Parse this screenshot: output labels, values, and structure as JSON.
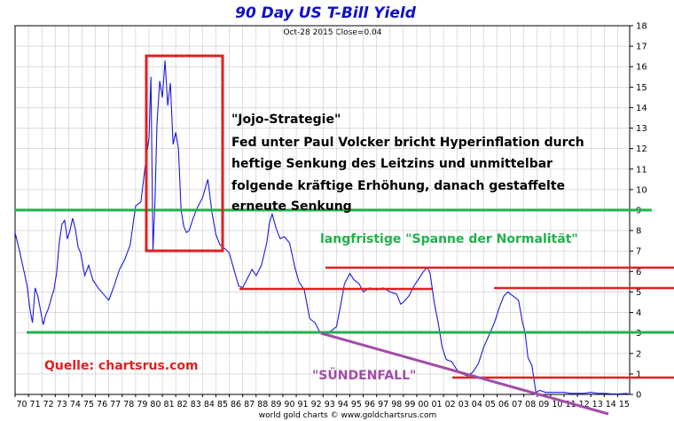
{
  "colors": {
    "series": "#1a1ae0",
    "grid": "#c8c8c8",
    "green": "#22b14c",
    "red": "#e02020",
    "purple": "#a24ca8",
    "title": "#1010c8"
  },
  "chart_data": {
    "type": "line",
    "title": "90 Day US T-Bill Yield",
    "subtitle": "Oct-28 2015  Close=0.04",
    "footer": "world gold charts © www.goldchartsrus.com",
    "xlim": [
      1970,
      2015.9
    ],
    "ylim": [
      0,
      18
    ],
    "y_ticks": [
      0,
      1,
      2,
      3,
      4,
      5,
      6,
      7,
      8,
      9,
      10,
      11,
      12,
      13,
      14,
      15,
      16,
      17,
      18
    ],
    "x_ticks": [
      "70",
      "71",
      "72",
      "73",
      "74",
      "75",
      "76",
      "77",
      "78",
      "79",
      "80",
      "81",
      "82",
      "83",
      "84",
      "85",
      "86",
      "87",
      "88",
      "89",
      "90",
      "91",
      "92",
      "93",
      "94",
      "95",
      "96",
      "97",
      "98",
      "99",
      "00",
      "01",
      "02",
      "03",
      "04",
      "05",
      "06",
      "07",
      "08",
      "09",
      "10",
      "11",
      "12",
      "13",
      "14",
      "15"
    ],
    "grid": true,
    "series": [
      {
        "x": [
          1970.0,
          1970.3,
          1970.6,
          1970.9,
          1971.1,
          1971.3,
          1971.5,
          1971.7,
          1971.9,
          1972.1,
          1972.3,
          1972.5,
          1972.7,
          1972.9,
          1973.1,
          1973.3,
          1973.5,
          1973.7,
          1973.9,
          1974.1,
          1974.3,
          1974.5,
          1974.7,
          1974.9,
          1975.2,
          1975.5,
          1975.8,
          1976.2,
          1976.6,
          1977.0,
          1977.4,
          1977.8,
          1978.2,
          1978.6,
          1979.0,
          1979.4,
          1979.8,
          1980.0,
          1980.15,
          1980.3,
          1980.45,
          1980.6,
          1980.8,
          1981.0,
          1981.2,
          1981.4,
          1981.6,
          1981.8,
          1982.0,
          1982.2,
          1982.4,
          1982.6,
          1982.8,
          1983.0,
          1983.3,
          1983.6,
          1984.0,
          1984.4,
          1984.7,
          1985.0,
          1985.3,
          1985.7,
          1986.0,
          1986.3,
          1986.7,
          1987.0,
          1987.3,
          1987.7,
          1988.0,
          1988.4,
          1988.8,
          1989.0,
          1989.2,
          1989.5,
          1989.8,
          1990.1,
          1990.5,
          1990.9,
          1991.2,
          1991.6,
          1992.0,
          1992.4,
          1992.8,
          1993.2,
          1993.6,
          1994.0,
          1994.3,
          1994.6,
          1995.0,
          1995.3,
          1995.7,
          1996.0,
          1996.5,
          1997.0,
          1997.5,
          1998.0,
          1998.5,
          1998.8,
          1999.0,
          1999.4,
          1999.8,
          2000.2,
          2000.5,
          2000.8,
          2001.0,
          2001.3,
          2001.6,
          2001.9,
          2002.2,
          2002.6,
          2003.0,
          2003.4,
          2003.8,
          2004.2,
          2004.6,
          2005.0,
          2005.4,
          2005.8,
          2006.2,
          2006.5,
          2006.8,
          2007.2,
          2007.6,
          2007.9,
          2008.1,
          2008.3,
          2008.6,
          2008.9,
          2009.2,
          2009.6,
          2010.0,
          2010.5,
          2011.0,
          2011.5,
          2012.0,
          2012.5,
          2013.0,
          2013.5,
          2014.0,
          2014.5,
          2015.0,
          2015.5,
          2015.8
        ],
        "values": [
          7.9,
          7.1,
          6.2,
          5.3,
          4.2,
          3.5,
          5.2,
          4.8,
          4.1,
          3.4,
          3.9,
          4.2,
          4.7,
          5.1,
          5.9,
          7.4,
          8.3,
          8.5,
          7.6,
          8.0,
          8.6,
          8.1,
          7.2,
          6.9,
          5.8,
          6.3,
          5.6,
          5.2,
          4.9,
          4.6,
          5.3,
          6.1,
          6.6,
          7.3,
          9.2,
          9.4,
          11.6,
          12.5,
          15.5,
          7.0,
          9.5,
          13.2,
          15.3,
          14.5,
          16.3,
          14.1,
          15.2,
          12.2,
          12.8,
          12.0,
          9.0,
          8.2,
          7.9,
          8.0,
          8.6,
          9.1,
          9.6,
          10.5,
          8.9,
          7.8,
          7.3,
          7.1,
          6.9,
          6.2,
          5.3,
          5.2,
          5.6,
          6.1,
          5.8,
          6.3,
          7.4,
          8.4,
          8.8,
          8.1,
          7.6,
          7.7,
          7.4,
          6.2,
          5.5,
          5.1,
          3.7,
          3.5,
          3.0,
          3.0,
          3.1,
          3.3,
          4.3,
          5.4,
          5.9,
          5.6,
          5.4,
          5.0,
          5.2,
          5.1,
          5.2,
          5.0,
          4.9,
          4.4,
          4.5,
          4.8,
          5.3,
          5.7,
          6.0,
          6.2,
          5.9,
          4.5,
          3.5,
          2.3,
          1.7,
          1.6,
          1.2,
          1.0,
          0.9,
          1.1,
          1.5,
          2.3,
          2.9,
          3.5,
          4.3,
          4.8,
          5.0,
          4.8,
          4.6,
          3.5,
          3.0,
          1.8,
          1.4,
          0.1,
          0.2,
          0.1,
          0.1,
          0.1,
          0.1,
          0.05,
          0.05,
          0.05,
          0.1,
          0.05,
          0.05,
          0.03,
          0.02,
          0.04,
          0.04
        ]
      }
    ],
    "annotations": [
      {
        "id": "jojo-title",
        "text": "\"Jojo-Strategie\""
      },
      {
        "id": "jojo-l1",
        "text": "Fed unter Paul Volcker bricht Hyperinflation durch"
      },
      {
        "id": "jojo-l2",
        "text": "heftige Senkung des Leitzins und unmittelbar"
      },
      {
        "id": "jojo-l3",
        "text": "folgende kräftige Erhöhung, danach gestaffelte"
      },
      {
        "id": "jojo-l4",
        "text": "erneute Senkung"
      },
      {
        "id": "normal",
        "text": "langfristige \"Spanne der Normalität\""
      },
      {
        "id": "source",
        "text": "Quelle: chartsrus.com"
      },
      {
        "id": "suendenfall",
        "text": "\"SÜNDENFALL\""
      }
    ]
  }
}
